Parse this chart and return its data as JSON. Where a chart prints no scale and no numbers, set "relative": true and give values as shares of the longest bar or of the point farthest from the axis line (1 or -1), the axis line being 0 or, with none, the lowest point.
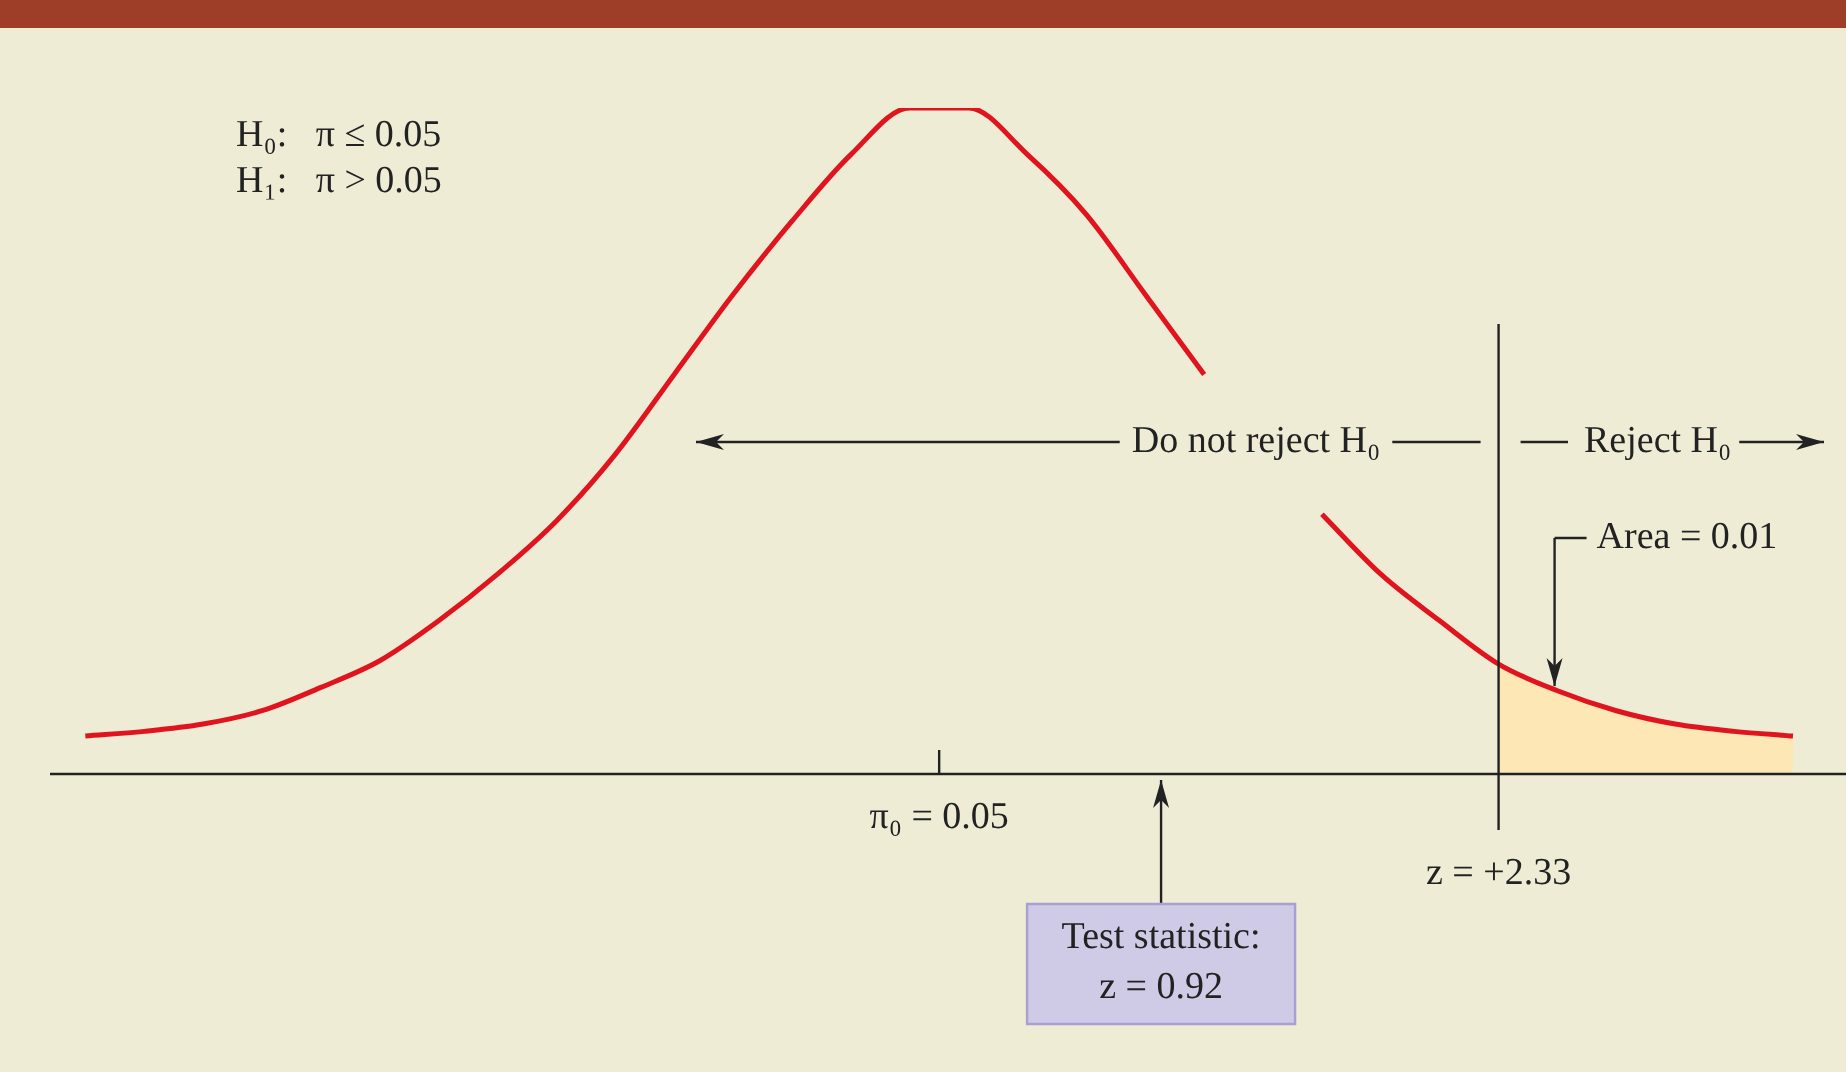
{
  "chart_data": {
    "type": "line",
    "relative": true,
    "categories": [
      null,
      null,
      null,
      null,
      null,
      null,
      null,
      null,
      null,
      null,
      null,
      null,
      null,
      null,
      null,
      null,
      null,
      null,
      null,
      null,
      null,
      null,
      null,
      null,
      null,
      null,
      null,
      null,
      null,
      null
    ],
    "series": [
      {
        "type": "area",
        "color": "#fde8b5",
        "values": [
          null,
          null,
          null,
          null,
          null,
          null,
          null,
          null,
          null,
          null,
          null,
          null,
          null,
          null,
          null,
          null,
          null,
          null,
          null,
          null,
          null,
          null,
          null,
          null,
          0.165,
          0.125,
          0.095,
          0.075,
          0.064,
          0.057
        ]
      },
      {
        "color": "#e0141e",
        "values": [
          0.057,
          0.064,
          0.075,
          0.095,
          0.13,
          0.17,
          0.23,
          0.3,
          0.38,
          0.48,
          0.6,
          0.72,
          0.83,
          0.93,
          1,
          1,
          0.93,
          0.84,
          0.72,
          0.6,
          null,
          0.39,
          0.3,
          0.23,
          0.165,
          0.125,
          0.095,
          0.075,
          0.064,
          0.057
        ]
      }
    ],
    "legend": false,
    "marker": "none",
    "annotations": [
      "H₀:   π ≤ 0.05",
      "H₁:   π > 0.05",
      "Do not reject H₀",
      "Reject H₀",
      "Area = 0.01",
      "π₀ = 0.05",
      "z = +2.33",
      "Test statistic: z = 0.92"
    ]
  }
}
